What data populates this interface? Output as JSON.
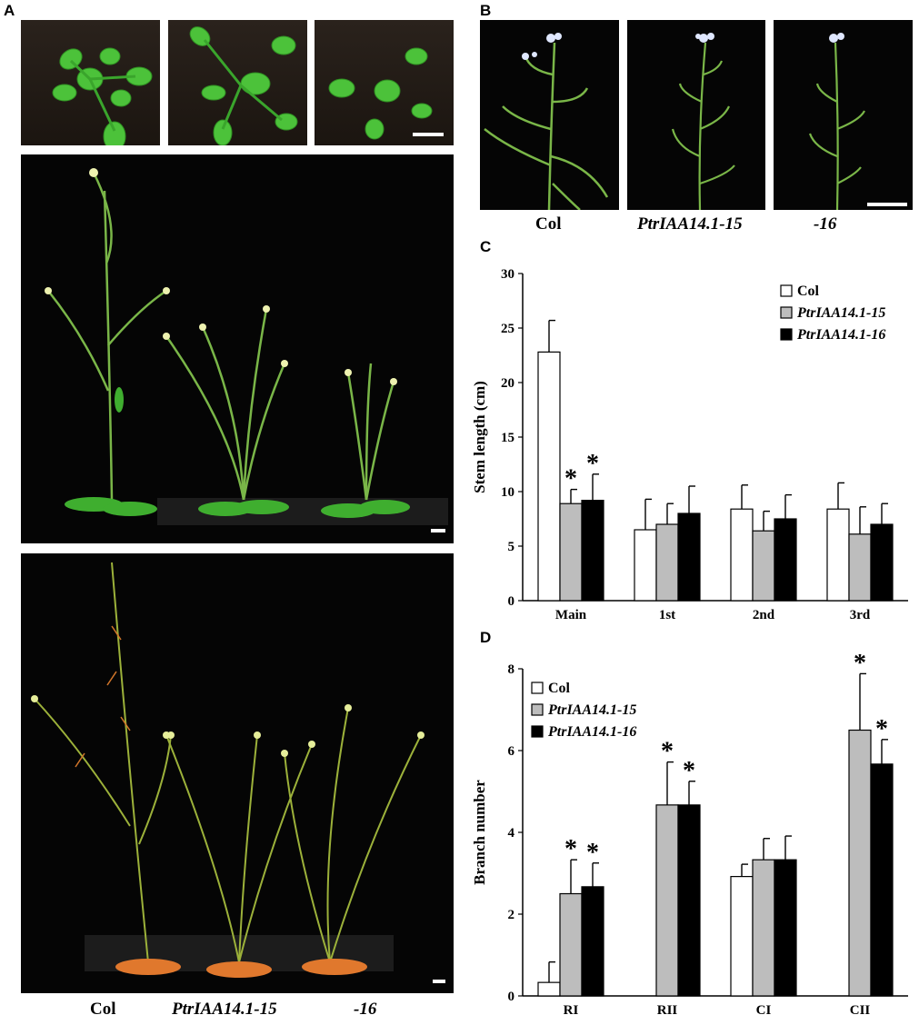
{
  "panel_labels": {
    "a": "A",
    "b": "B",
    "c": "C",
    "d": "D"
  },
  "panel_a": {
    "captions": {
      "col": "Col",
      "line15": "PtrIAA14.1-15",
      "line16": "-16"
    }
  },
  "panel_b": {
    "captions": {
      "col": "Col",
      "line15": "PtrIAA14.1-15",
      "line16": "-16"
    }
  },
  "colors": {
    "col": "#ffffff",
    "line15": "#bdbdbd",
    "line16": "#000000",
    "leaf": "#3fae2f",
    "stem": "#7ab648",
    "flower": "#eef2b0"
  },
  "chart_data": [
    {
      "type": "bar",
      "panel": "C",
      "categories": [
        "Main",
        "1st",
        "2nd",
        "3rd"
      ],
      "ylabel": "Stem length (cm)",
      "ylim": [
        0,
        30
      ],
      "yticks": [
        "0",
        "5",
        "10",
        "15",
        "20",
        "25",
        "30"
      ],
      "legend_position": "top-right",
      "series": [
        {
          "name": "Col",
          "values": [
            22.8,
            6.5,
            8.4,
            8.4
          ],
          "errors": [
            2.9,
            2.8,
            2.2,
            2.4
          ],
          "sig": [
            false,
            false,
            false,
            false
          ]
        },
        {
          "name": "PtrIAA14.1-15",
          "values": [
            8.9,
            7.0,
            6.4,
            6.1
          ],
          "errors": [
            1.3,
            1.9,
            1.8,
            2.5
          ],
          "sig": [
            true,
            false,
            false,
            false
          ]
        },
        {
          "name": "PtrIAA14.1-16",
          "values": [
            9.2,
            8.0,
            7.5,
            7.0
          ],
          "errors": [
            2.4,
            2.5,
            2.2,
            1.9
          ],
          "sig": [
            true,
            false,
            false,
            false
          ]
        }
      ],
      "sig_marker": "*"
    },
    {
      "type": "bar",
      "panel": "D",
      "categories": [
        "RI",
        "RII",
        "CI",
        "CII"
      ],
      "ylabel": "Branch number",
      "ylim": [
        0,
        8
      ],
      "yticks": [
        "0",
        "2",
        "4",
        "6",
        "8"
      ],
      "legend_position": "top-left",
      "series": [
        {
          "name": "Col",
          "values": [
            0.33,
            0.0,
            2.92,
            0.0
          ],
          "errors": [
            0.5,
            0.0,
            0.3,
            0.0
          ],
          "sig": [
            false,
            false,
            false,
            false
          ]
        },
        {
          "name": "PtrIAA14.1-15",
          "values": [
            2.5,
            4.67,
            3.33,
            6.5
          ],
          "errors": [
            0.83,
            1.05,
            0.52,
            1.38
          ],
          "sig": [
            true,
            true,
            false,
            true
          ]
        },
        {
          "name": "PtrIAA14.1-16",
          "values": [
            2.67,
            4.67,
            3.33,
            5.67
          ],
          "errors": [
            0.58,
            0.58,
            0.58,
            0.6
          ],
          "sig": [
            true,
            true,
            false,
            true
          ]
        }
      ],
      "sig_marker": "*"
    }
  ]
}
